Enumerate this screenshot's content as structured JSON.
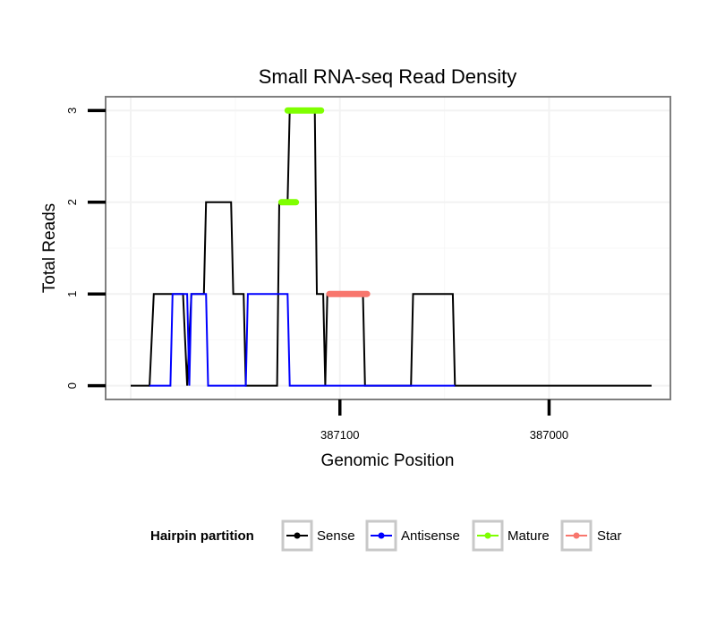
{
  "chart_data": {
    "type": "line",
    "title": "Small RNA-seq Read Density",
    "xlabel": "Genomic Position",
    "ylabel": "Total Reads",
    "xlim": [
      387212,
      386942
    ],
    "x_reversed": true,
    "ylim": [
      -0.15,
      3.15
    ],
    "x_ticks": [
      387100,
      387000
    ],
    "x_tick_labels": [
      "387100",
      "387000"
    ],
    "y_ticks": [
      0,
      1,
      2,
      3
    ],
    "y_tick_labels": [
      "0",
      "1",
      "2",
      "3"
    ],
    "grid": true,
    "legend_title": "Hairpin partition",
    "legend_position": "bottom",
    "series": [
      {
        "name": "Sense",
        "color": "#000000",
        "style": "line",
        "points": [
          [
            387200,
            0
          ],
          [
            387191,
            0
          ],
          [
            387189,
            1
          ],
          [
            387175,
            1
          ],
          [
            387173,
            0
          ],
          [
            387171,
            1
          ],
          [
            387165,
            1
          ],
          [
            387164,
            2
          ],
          [
            387152,
            2
          ],
          [
            387151,
            1
          ],
          [
            387146,
            1
          ],
          [
            387145,
            0
          ],
          [
            387130,
            0
          ],
          [
            387129,
            2
          ],
          [
            387125,
            2
          ],
          [
            387124,
            3
          ],
          [
            387112,
            3
          ],
          [
            387111,
            1
          ],
          [
            387108,
            1
          ],
          [
            387107,
            0
          ],
          [
            387106,
            1
          ],
          [
            387089,
            1
          ],
          [
            387088,
            0
          ],
          [
            387066,
            0
          ],
          [
            387065,
            1
          ],
          [
            387046,
            1
          ],
          [
            387045,
            0
          ],
          [
            386951,
            0
          ]
        ]
      },
      {
        "name": "Antisense",
        "color": "#0000ff",
        "style": "line",
        "points": [
          [
            387191,
            0
          ],
          [
            387181,
            0
          ],
          [
            387180,
            1
          ],
          [
            387173,
            1
          ],
          [
            387172,
            0
          ],
          [
            387171,
            1
          ],
          [
            387164,
            1
          ],
          [
            387163,
            0
          ],
          [
            387145,
            0
          ],
          [
            387144,
            1
          ],
          [
            387125,
            1
          ],
          [
            387124,
            0
          ],
          [
            387046,
            0
          ],
          [
            387045,
            0
          ]
        ]
      },
      {
        "name": "Mature",
        "color": "#7fff00",
        "style": "segment",
        "segments": [
          {
            "x": [
              387128,
              387121
            ],
            "y": 2
          },
          {
            "x": [
              387125,
              387109
            ],
            "y": 3
          }
        ]
      },
      {
        "name": "Star",
        "color": "#f8766d",
        "style": "segment",
        "segments": [
          {
            "x": [
              387105,
              387087
            ],
            "y": 1
          }
        ]
      }
    ]
  }
}
